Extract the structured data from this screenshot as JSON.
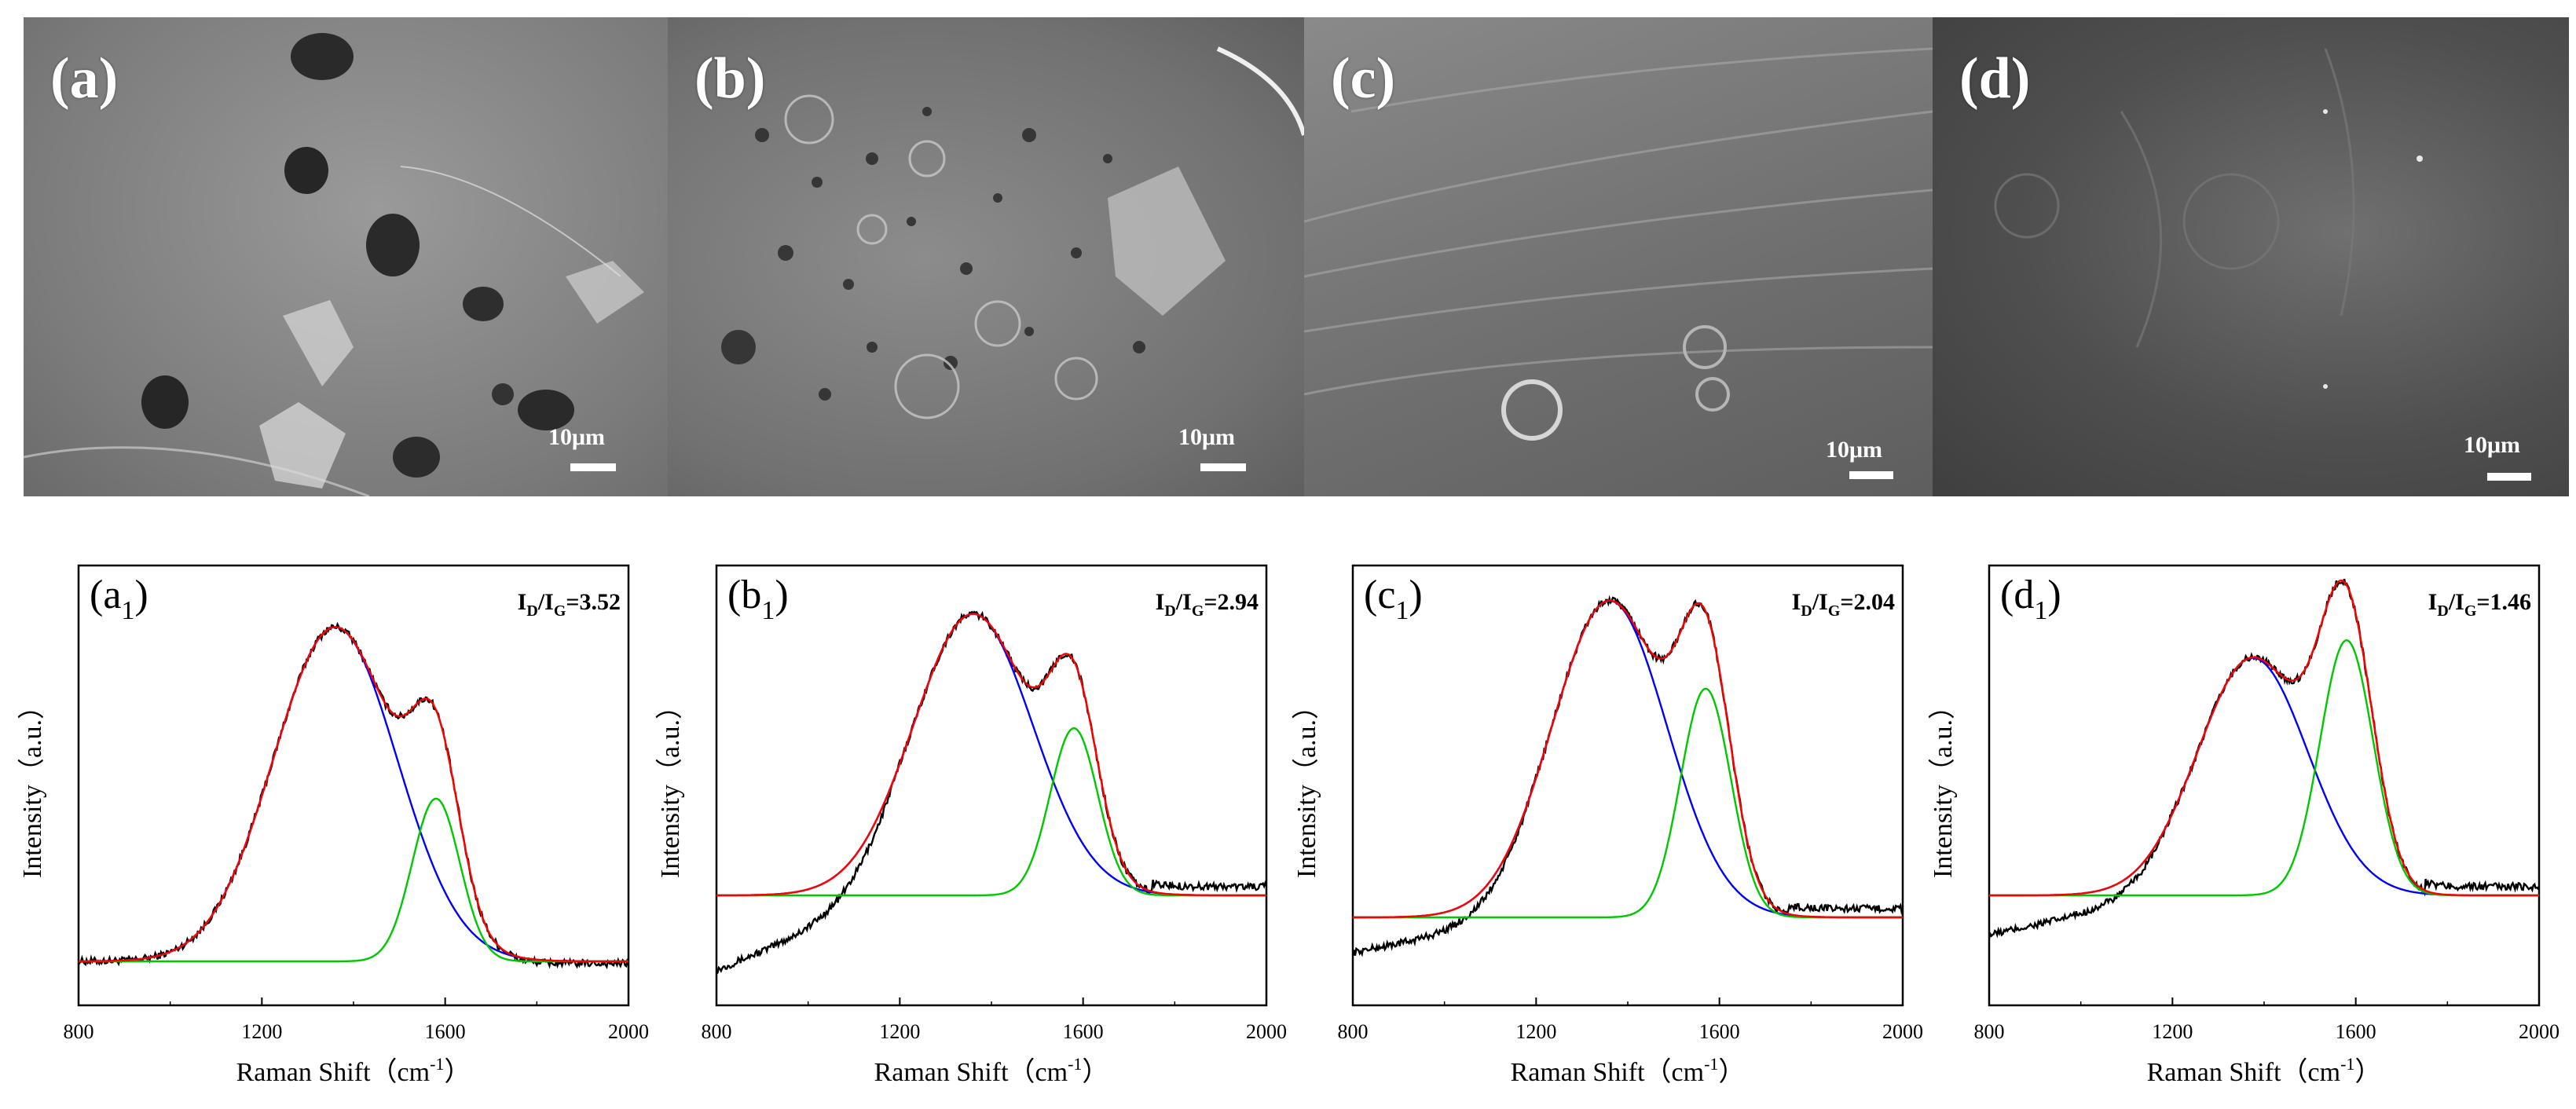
{
  "figure": {
    "sem_panels": [
      {
        "id": "a",
        "label": "(a)",
        "scale": "10μm"
      },
      {
        "id": "b",
        "label": "(b)",
        "scale": "10μm"
      },
      {
        "id": "c",
        "label": "(c)",
        "scale": "10μm"
      },
      {
        "id": "d",
        "label": "(d)",
        "scale": "10μm"
      }
    ]
  },
  "chart_data": [
    {
      "type": "line",
      "panel": "(a",
      "panel_sub": "1",
      "panel_close": ")",
      "ratio_base": "I",
      "ratio_sub1": "D",
      "ratio_mid": "/I",
      "ratio_sub2": "G",
      "ratio_value": "=3.52",
      "xlabel": "Raman Shift（cm",
      "xlabel_sup": "-1",
      "xlabel_end": "）",
      "ylabel": "Intensity（a.u.）",
      "xlim": [
        800,
        2000
      ],
      "xticks": [
        800,
        1200,
        1600,
        2000
      ],
      "xtick_labels": [
        "800",
        "1200",
        "1600",
        "2000"
      ],
      "ylim": [
        0,
        1
      ],
      "series": [
        {
          "name": "measured",
          "color": "#000000",
          "baseline_left": 0.1,
          "baseline_right": 0.095,
          "noise": 0.008
        },
        {
          "name": "D band",
          "color": "#0000ff",
          "center": 1360,
          "width": 135,
          "height": 0.76,
          "baseline": 0.1
        },
        {
          "name": "G band",
          "color": "#00c800",
          "center": 1580,
          "width": 52,
          "height": 0.37,
          "baseline": 0.1
        },
        {
          "name": "fit",
          "color": "#ff0000",
          "baseline": 0.1
        }
      ]
    },
    {
      "type": "line",
      "panel": "(b",
      "panel_sub": "1",
      "panel_close": ")",
      "ratio_base": "I",
      "ratio_sub1": "D",
      "ratio_mid": "/I",
      "ratio_sub2": "G",
      "ratio_value": "=2.94",
      "xlabel": "Raman Shift（cm",
      "xlabel_sup": "-1",
      "xlabel_end": "）",
      "ylabel": "Intensity（a.u.）",
      "xlim": [
        800,
        2000
      ],
      "xticks": [
        800,
        1200,
        1600,
        2000
      ],
      "xtick_labels": [
        "800",
        "1200",
        "1600",
        "2000"
      ],
      "ylim": [
        0,
        1
      ],
      "series": [
        {
          "name": "measured",
          "color": "#000000",
          "baseline_left": 0.08,
          "baseline_right": 0.27,
          "noise": 0.008
        },
        {
          "name": "D band",
          "color": "#0000ff",
          "center": 1360,
          "width": 130,
          "height": 0.64,
          "baseline": 0.25
        },
        {
          "name": "G band",
          "color": "#00c800",
          "center": 1580,
          "width": 52,
          "height": 0.38,
          "baseline": 0.25
        },
        {
          "name": "fit",
          "color": "#ff0000",
          "baseline": 0.25
        }
      ]
    },
    {
      "type": "line",
      "panel": "(c",
      "panel_sub": "1",
      "panel_close": ")",
      "ratio_base": "I",
      "ratio_sub1": "D",
      "ratio_mid": "/I",
      "ratio_sub2": "G",
      "ratio_value": "=2.04",
      "xlabel": "Raman Shift（cm",
      "xlabel_sup": "-1",
      "xlabel_end": "）",
      "ylabel": "Intensity（a.u.）",
      "xlim": [
        800,
        2000
      ],
      "xticks": [
        800,
        1200,
        1600,
        2000
      ],
      "xtick_labels": [
        "800",
        "1200",
        "1600",
        "2000"
      ],
      "ylim": [
        0,
        1
      ],
      "series": [
        {
          "name": "measured",
          "color": "#000000",
          "baseline_left": 0.12,
          "baseline_right": 0.22,
          "noise": 0.008
        },
        {
          "name": "D band",
          "color": "#0000ff",
          "center": 1360,
          "width": 125,
          "height": 0.72,
          "baseline": 0.2
        },
        {
          "name": "G band",
          "color": "#00c800",
          "center": 1570,
          "width": 55,
          "height": 0.52,
          "baseline": 0.2
        },
        {
          "name": "fit",
          "color": "#ff0000",
          "baseline": 0.2
        }
      ]
    },
    {
      "type": "line",
      "panel": "(d",
      "panel_sub": "1",
      "panel_close": ")",
      "ratio_base": "I",
      "ratio_sub1": "D",
      "ratio_mid": "/I",
      "ratio_sub2": "G",
      "ratio_value": "=1.46",
      "xlabel": "Raman Shift（cm",
      "xlabel_sup": "-1",
      "xlabel_end": "）",
      "ylabel": "Intensity（a.u.）",
      "xlim": [
        800,
        2000
      ],
      "xticks": [
        800,
        1200,
        1600,
        2000
      ],
      "xtick_labels": [
        "800",
        "1200",
        "1600",
        "2000"
      ],
      "ylim": [
        0,
        1
      ],
      "series": [
        {
          "name": "measured",
          "color": "#000000",
          "baseline_left": 0.16,
          "baseline_right": 0.27,
          "noise": 0.008
        },
        {
          "name": "D band",
          "color": "#0000ff",
          "center": 1375,
          "width": 120,
          "height": 0.54,
          "baseline": 0.25
        },
        {
          "name": "G band",
          "color": "#00c800",
          "center": 1580,
          "width": 58,
          "height": 0.58,
          "baseline": 0.25
        },
        {
          "name": "fit",
          "color": "#ff0000",
          "baseline": 0.25
        }
      ]
    }
  ]
}
